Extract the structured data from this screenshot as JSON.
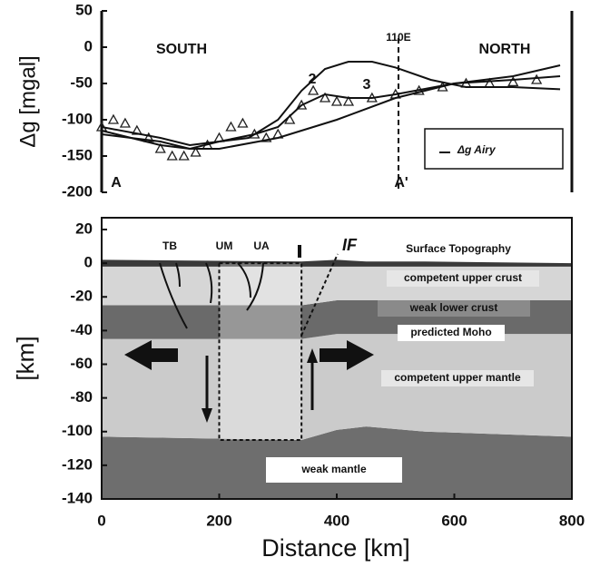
{
  "chart_data": [
    {
      "type": "line",
      "ylabel": "Δg [mgal]",
      "xlim": [
        0,
        800
      ],
      "ylim": [
        -200,
        50
      ],
      "yticks": [
        50,
        0,
        -50,
        -100,
        -150,
        -200
      ],
      "annotations": [
        "SOUTH",
        "NORTH",
        "A",
        "A'"
      ],
      "reference_line": {
        "label": "110E",
        "x": 505
      },
      "series": [
        {
          "marker": "triangle",
          "color": "#222222",
          "x": [
            0,
            20,
            40,
            60,
            80,
            100,
            120,
            140,
            160,
            180,
            200,
            220,
            240,
            260,
            280,
            300,
            320,
            340,
            360,
            380,
            400,
            420,
            460,
            500,
            540,
            580,
            620,
            660,
            700,
            740
          ],
          "values": [
            -110,
            -100,
            -105,
            -115,
            -125,
            -140,
            -150,
            -150,
            -145,
            -135,
            -125,
            -110,
            -105,
            -120,
            -125,
            -120,
            -100,
            -80,
            -60,
            -70,
            -75,
            -75,
            -70,
            -65,
            -60,
            -55,
            -50,
            -50,
            -48,
            -45
          ]
        },
        {
          "name": "2",
          "color": "#111111",
          "x": [
            0,
            100,
            150,
            200,
            250,
            300,
            340,
            380,
            420,
            460,
            500,
            560,
            620,
            700,
            780
          ],
          "values": [
            -110,
            -125,
            -135,
            -130,
            -125,
            -100,
            -60,
            -30,
            -20,
            -20,
            -28,
            -45,
            -55,
            -55,
            -58
          ]
        },
        {
          "name": "3",
          "color": "#111111",
          "x": [
            0,
            100,
            150,
            200,
            260,
            300,
            340,
            380,
            420,
            460,
            500,
            600,
            700,
            780
          ],
          "values": [
            -115,
            -135,
            -140,
            -130,
            -120,
            -110,
            -80,
            -65,
            -70,
            -70,
            -65,
            -50,
            -45,
            -40
          ]
        },
        {
          "name": "Δg Airy",
          "color": "#111111",
          "x": [
            0,
            100,
            150,
            200,
            300,
            400,
            500,
            600,
            700,
            780
          ],
          "values": [
            -120,
            -130,
            -140,
            -140,
            -125,
            -100,
            -70,
            -50,
            -40,
            -25
          ]
        }
      ]
    },
    {
      "type": "section",
      "xlabel": "Distance [km]",
      "ylabel": "[km]",
      "xlim": [
        0,
        800
      ],
      "ylim": [
        -140,
        27
      ],
      "xticks": [
        0,
        200,
        400,
        600,
        800
      ],
      "yticks": [
        20,
        0,
        -20,
        -40,
        -60,
        -80,
        -100,
        -120,
        -140
      ],
      "annotations": [
        "TB",
        "UM",
        "UA",
        "IF"
      ],
      "layers": [
        {
          "label": "weak mantle",
          "color": "#6e6e6e",
          "x": [
            0,
            340,
            400,
            450,
            550,
            800
          ],
          "top": [
            -103,
            -105,
            -99,
            -97,
            -100,
            -103
          ],
          "bottom": [
            -140,
            -140,
            -140,
            -140,
            -140,
            -140
          ]
        },
        {
          "label": "competent upper mantle",
          "color": "#cbcbcb",
          "x": [
            0,
            340,
            400,
            450,
            550,
            800
          ],
          "top": [
            -45,
            -45,
            -42,
            -42,
            -42,
            -42
          ],
          "bottom": [
            -103,
            -105,
            -99,
            -97,
            -100,
            -103
          ]
        },
        {
          "label": "weak lower crust",
          "color": "#6a6a6a",
          "x": [
            0,
            340,
            400,
            450,
            550,
            800
          ],
          "top": [
            -25,
            -25,
            -22,
            -22,
            -22,
            -22
          ],
          "bottom": [
            -45,
            -45,
            -42,
            -42,
            -42,
            -42
          ]
        },
        {
          "label": "competent upper crust",
          "color": "#d6d6d6",
          "x": [
            0,
            340,
            400,
            450,
            550,
            800
          ],
          "top": [
            -2,
            -2,
            -2,
            -2,
            -2,
            -2
          ],
          "bottom": [
            -25,
            -25,
            -22,
            -22,
            -22,
            -22
          ]
        },
        {
          "label": "Surface Topography",
          "color": "#3a3a3a",
          "x": [
            0,
            340,
            400,
            450,
            550,
            800
          ],
          "top": [
            2,
            1,
            2,
            1,
            1,
            0
          ],
          "bottom": [
            -2,
            -2,
            -2,
            -2,
            -2,
            -2
          ]
        }
      ],
      "moho_label": "predicted Moho",
      "block": {
        "x": [
          200,
          340
        ],
        "top": 0,
        "bottom": -105
      }
    }
  ]
}
